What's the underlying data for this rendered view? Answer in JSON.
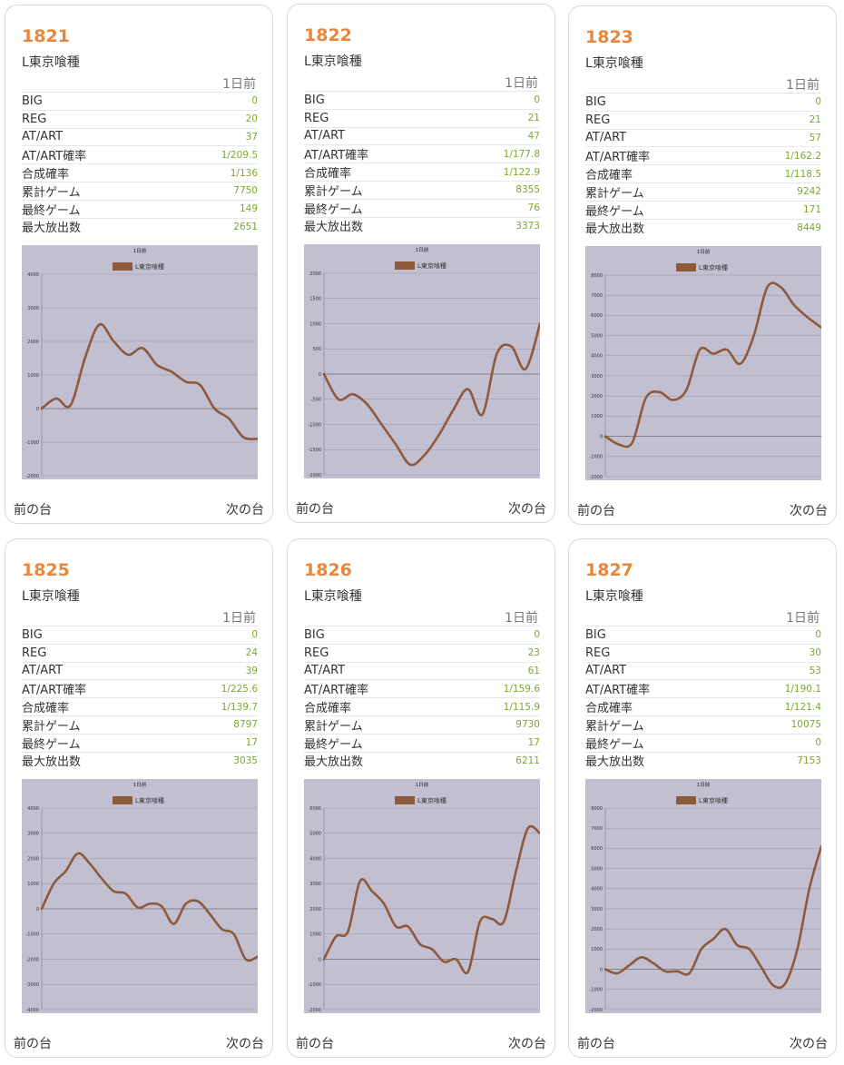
{
  "colors": {
    "number": "#e8873c",
    "value": "#7aa82a",
    "line": "#8e5a3b",
    "plot_bg": "#c2bfd0"
  },
  "nav": {
    "prev_label": "前の台",
    "next_label": "次の台"
  },
  "cards": [
    {
      "number": "1821",
      "model": "L東京喰種",
      "day": "1日前",
      "stats": [
        {
          "label": "BIG",
          "value": "0"
        },
        {
          "label": "REG",
          "value": "20"
        },
        {
          "label": "AT/ART",
          "value": "37"
        },
        {
          "label": "AT/ART確率",
          "value": "1/209.5"
        },
        {
          "label": "合成確率",
          "value": "1/136"
        },
        {
          "label": "累計ゲーム",
          "value": "7750"
        },
        {
          "label": "最終ゲーム",
          "value": "149"
        },
        {
          "label": "最大放出数",
          "value": "2651"
        }
      ]
    },
    {
      "number": "1822",
      "model": "L東京喰種",
      "day": "1日前",
      "stats": [
        {
          "label": "BIG",
          "value": "0"
        },
        {
          "label": "REG",
          "value": "21"
        },
        {
          "label": "AT/ART",
          "value": "47"
        },
        {
          "label": "AT/ART確率",
          "value": "1/177.8"
        },
        {
          "label": "合成確率",
          "value": "1/122.9"
        },
        {
          "label": "累計ゲーム",
          "value": "8355"
        },
        {
          "label": "最終ゲーム",
          "value": "76"
        },
        {
          "label": "最大放出数",
          "value": "3373"
        }
      ]
    },
    {
      "number": "1823",
      "model": "L東京喰種",
      "day": "1日前",
      "stats": [
        {
          "label": "BIG",
          "value": "0"
        },
        {
          "label": "REG",
          "value": "21"
        },
        {
          "label": "AT/ART",
          "value": "57"
        },
        {
          "label": "AT/ART確率",
          "value": "1/162.2"
        },
        {
          "label": "合成確率",
          "value": "1/118.5"
        },
        {
          "label": "累計ゲーム",
          "value": "9242"
        },
        {
          "label": "最終ゲーム",
          "value": "171"
        },
        {
          "label": "最大放出数",
          "value": "8449"
        }
      ]
    },
    {
      "number": "1825",
      "model": "L東京喰種",
      "day": "1日前",
      "stats": [
        {
          "label": "BIG",
          "value": "0"
        },
        {
          "label": "REG",
          "value": "24"
        },
        {
          "label": "AT/ART",
          "value": "39"
        },
        {
          "label": "AT/ART確率",
          "value": "1/225.6"
        },
        {
          "label": "合成確率",
          "value": "1/139.7"
        },
        {
          "label": "累計ゲーム",
          "value": "8797"
        },
        {
          "label": "最終ゲーム",
          "value": "17"
        },
        {
          "label": "最大放出数",
          "value": "3035"
        }
      ]
    },
    {
      "number": "1826",
      "model": "L東京喰種",
      "day": "1日前",
      "stats": [
        {
          "label": "BIG",
          "value": "0"
        },
        {
          "label": "REG",
          "value": "23"
        },
        {
          "label": "AT/ART",
          "value": "61"
        },
        {
          "label": "AT/ART確率",
          "value": "1/159.6"
        },
        {
          "label": "合成確率",
          "value": "1/115.9"
        },
        {
          "label": "累計ゲーム",
          "value": "9730"
        },
        {
          "label": "最終ゲーム",
          "value": "17"
        },
        {
          "label": "最大放出数",
          "value": "6211"
        }
      ]
    },
    {
      "number": "1827",
      "model": "L東京喰種",
      "day": "1日前",
      "stats": [
        {
          "label": "BIG",
          "value": "0"
        },
        {
          "label": "REG",
          "value": "30"
        },
        {
          "label": "AT/ART",
          "value": "53"
        },
        {
          "label": "AT/ART確率",
          "value": "1/190.1"
        },
        {
          "label": "合成確率",
          "value": "1/121.4"
        },
        {
          "label": "累計ゲーム",
          "value": "10075"
        },
        {
          "label": "最終ゲーム",
          "value": "0"
        },
        {
          "label": "最大放出数",
          "value": "7153"
        }
      ]
    }
  ],
  "chart_data": [
    {
      "type": "line",
      "title": "1日前",
      "legend": "top",
      "grid": true,
      "series": [
        {
          "name": "L東京喰種",
          "values": [
            0,
            300,
            100,
            1500,
            2500,
            2000,
            1600,
            1800,
            1300,
            1100,
            800,
            700,
            0,
            -300,
            -850,
            -900
          ]
        }
      ],
      "ylim": [
        -2000,
        4000
      ],
      "yticks": [
        -2000,
        -1000,
        0,
        1000,
        2000,
        3000,
        4000
      ]
    },
    {
      "type": "line",
      "title": "1日前",
      "legend": "top",
      "grid": true,
      "series": [
        {
          "name": "L東京喰種",
          "values": [
            0,
            -500,
            -400,
            -600,
            -1000,
            -1400,
            -1800,
            -1600,
            -1200,
            -700,
            -300,
            -800,
            400,
            550,
            100,
            1000
          ]
        }
      ],
      "ylim": [
        -2000,
        2000
      ],
      "yticks": [
        -2000,
        -1500,
        -1000,
        -500,
        0,
        500,
        1000,
        1500,
        2000
      ]
    },
    {
      "type": "line",
      "title": "1日前",
      "legend": "top",
      "grid": true,
      "series": [
        {
          "name": "L東京喰種",
          "values": [
            0,
            -400,
            -300,
            1900,
            2200,
            1800,
            2300,
            4300,
            4100,
            4300,
            3600,
            5000,
            7400,
            7400,
            6500,
            5900,
            5400
          ]
        }
      ],
      "ylim": [
        -2000,
        8000
      ],
      "yticks": [
        -2000,
        -1000,
        0,
        1000,
        2000,
        3000,
        4000,
        5000,
        6000,
        7000,
        8000
      ]
    },
    {
      "type": "line",
      "title": "1日前",
      "legend": "top",
      "grid": true,
      "series": [
        {
          "name": "L東京喰種",
          "values": [
            0,
            1000,
            1500,
            2200,
            1800,
            1200,
            700,
            600,
            50,
            200,
            100,
            -600,
            200,
            300,
            -200,
            -800,
            -1000,
            -2000,
            -1900
          ]
        }
      ],
      "ylim": [
        -4000,
        4000
      ],
      "yticks": [
        -4000,
        -3000,
        -2000,
        -1000,
        0,
        1000,
        2000,
        3000,
        4000
      ]
    },
    {
      "type": "line",
      "title": "1日前",
      "legend": "top",
      "grid": true,
      "series": [
        {
          "name": "L東京喰種",
          "values": [
            0,
            900,
            1100,
            3100,
            2700,
            2200,
            1300,
            1300,
            600,
            400,
            -100,
            0,
            -500,
            1500,
            1600,
            1500,
            3500,
            5200,
            5000
          ]
        }
      ],
      "ylim": [
        -2000,
        6000
      ],
      "yticks": [
        -2000,
        -1000,
        0,
        1000,
        2000,
        3000,
        4000,
        5000,
        6000
      ]
    },
    {
      "type": "line",
      "title": "1日前",
      "legend": "top",
      "grid": true,
      "series": [
        {
          "name": "L東京喰種",
          "values": [
            0,
            -200,
            200,
            600,
            300,
            -100,
            -100,
            -200,
            1000,
            1500,
            2000,
            1200,
            1000,
            100,
            -800,
            -700,
            1000,
            4000,
            6100
          ]
        }
      ],
      "ylim": [
        -2000,
        8000
      ],
      "yticks": [
        -2000,
        -1000,
        0,
        1000,
        2000,
        3000,
        4000,
        5000,
        6000,
        7000,
        8000
      ]
    }
  ]
}
